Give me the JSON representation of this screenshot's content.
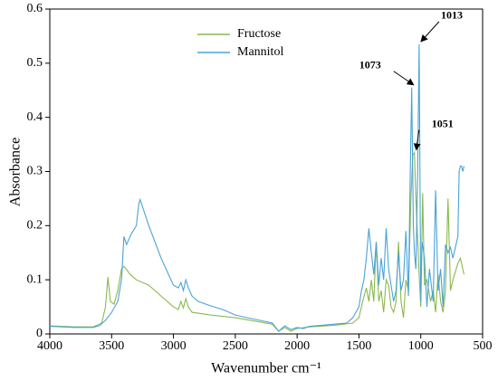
{
  "chart_data": {
    "type": "line",
    "xlabel": "Wavenumber cm⁻¹",
    "ylabel": "Absorbance",
    "xlim": [
      4000,
      500
    ],
    "ylim": [
      0,
      0.6
    ],
    "xticks": [
      4000,
      3500,
      3000,
      2500,
      2000,
      1500,
      1000,
      500
    ],
    "yticks": [
      0,
      0.1,
      0.2,
      0.3,
      0.4,
      0.5,
      0.6
    ],
    "legend": "upper center",
    "series": [
      {
        "name": "Fructose",
        "color": "#8cb84e",
        "x": [
          4000,
          3800,
          3650,
          3580,
          3550,
          3530,
          3510,
          3480,
          3450,
          3420,
          3400,
          3350,
          3300,
          3200,
          3100,
          3000,
          2960,
          2940,
          2920,
          2900,
          2880,
          2850,
          2700,
          2500,
          2300,
          2200,
          2150,
          2100,
          2050,
          2000,
          1900,
          1700,
          1550,
          1500,
          1470,
          1440,
          1420,
          1400,
          1380,
          1360,
          1340,
          1320,
          1300,
          1280,
          1260,
          1240,
          1220,
          1200,
          1180,
          1160,
          1140,
          1120,
          1100,
          1080,
          1065,
          1051,
          1040,
          1030,
          1013,
          1000,
          985,
          970,
          950,
          920,
          900,
          880,
          860,
          840,
          820,
          800,
          780,
          760,
          740,
          700,
          680,
          660,
          650
        ],
        "values": [
          0.015,
          0.013,
          0.013,
          0.02,
          0.05,
          0.105,
          0.06,
          0.055,
          0.08,
          0.12,
          0.125,
          0.11,
          0.1,
          0.09,
          0.07,
          0.05,
          0.045,
          0.06,
          0.048,
          0.065,
          0.05,
          0.04,
          0.035,
          0.03,
          0.022,
          0.018,
          0.005,
          0.012,
          0.005,
          0.01,
          0.013,
          0.016,
          0.02,
          0.03,
          0.06,
          0.085,
          0.06,
          0.1,
          0.06,
          0.17,
          0.06,
          0.08,
          0.04,
          0.1,
          0.09,
          0.05,
          0.04,
          0.06,
          0.17,
          0.06,
          0.03,
          0.1,
          0.08,
          0.25,
          0.33,
          0.335,
          0.25,
          0.2,
          0.11,
          0.05,
          0.26,
          0.09,
          0.1,
          0.06,
          0.08,
          0.04,
          0.11,
          0.06,
          0.04,
          0.08,
          0.25,
          0.08,
          0.1,
          0.13,
          0.14,
          0.12,
          0.11
        ]
      },
      {
        "name": "Mannitol",
        "color": "#4aa3d6",
        "x": [
          4000,
          3800,
          3650,
          3600,
          3550,
          3500,
          3450,
          3420,
          3400,
          3380,
          3360,
          3340,
          3300,
          3280,
          3270,
          3250,
          3200,
          3150,
          3100,
          3050,
          3000,
          2960,
          2940,
          2920,
          2900,
          2880,
          2850,
          2800,
          2700,
          2600,
          2500,
          2400,
          2300,
          2200,
          2150,
          2100,
          2050,
          2000,
          1950,
          1900,
          1800,
          1700,
          1600,
          1550,
          1500,
          1480,
          1460,
          1440,
          1420,
          1400,
          1380,
          1360,
          1340,
          1320,
          1300,
          1280,
          1260,
          1240,
          1220,
          1200,
          1180,
          1160,
          1140,
          1120,
          1100,
          1085,
          1073,
          1060,
          1051,
          1040,
          1025,
          1013,
          1000,
          990,
          970,
          950,
          930,
          900,
          880,
          860,
          840,
          820,
          800,
          780,
          760,
          740,
          700,
          690,
          680,
          670,
          660,
          650
        ],
        "values": [
          0.014,
          0.012,
          0.012,
          0.015,
          0.025,
          0.04,
          0.06,
          0.1,
          0.18,
          0.165,
          0.175,
          0.185,
          0.2,
          0.24,
          0.248,
          0.235,
          0.2,
          0.17,
          0.14,
          0.115,
          0.09,
          0.085,
          0.095,
          0.08,
          0.1,
          0.085,
          0.07,
          0.06,
          0.052,
          0.045,
          0.035,
          0.03,
          0.025,
          0.02,
          0.005,
          0.015,
          0.008,
          0.012,
          0.01,
          0.014,
          0.016,
          0.018,
          0.02,
          0.03,
          0.05,
          0.08,
          0.1,
          0.14,
          0.195,
          0.15,
          0.11,
          0.17,
          0.09,
          0.14,
          0.1,
          0.195,
          0.12,
          0.09,
          0.06,
          0.08,
          0.15,
          0.08,
          0.1,
          0.19,
          0.07,
          0.3,
          0.455,
          0.2,
          0.15,
          0.12,
          0.3,
          0.535,
          0.06,
          0.17,
          0.14,
          0.05,
          0.12,
          0.06,
          0.265,
          0.08,
          0.12,
          0.05,
          0.165,
          0.15,
          0.16,
          0.14,
          0.18,
          0.3,
          0.31,
          0.31,
          0.3,
          0.31
        ]
      }
    ],
    "annotations": [
      {
        "text": "1013",
        "x": 1013,
        "y": 0.535
      },
      {
        "text": "1073",
        "x": 1073,
        "y": 0.455
      },
      {
        "text": "1051",
        "x": 1051,
        "y": 0.335
      }
    ]
  }
}
